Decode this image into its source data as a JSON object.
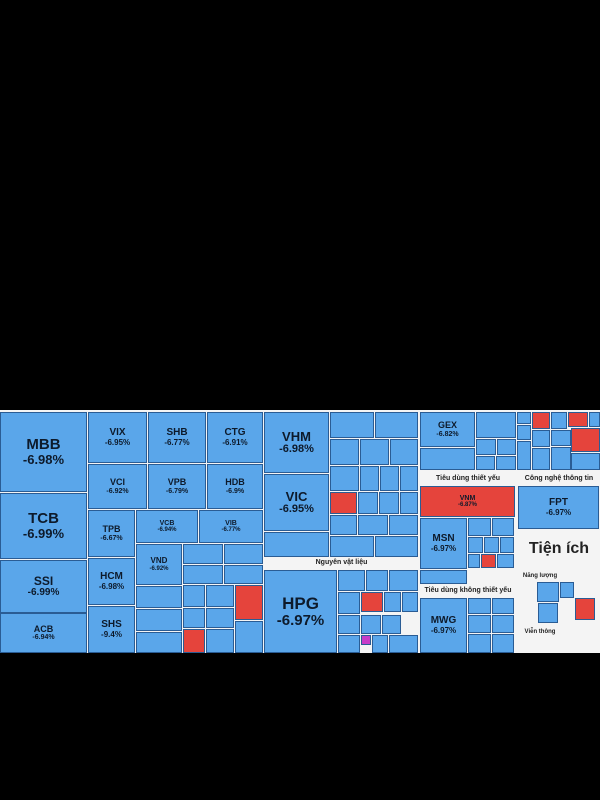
{
  "tiles": [
    {
      "ticker": "MBB",
      "change": "-6.98%"
    },
    {
      "ticker": "TCB",
      "change": "-6.99%"
    },
    {
      "ticker": "SSI",
      "change": "-6.99%"
    },
    {
      "ticker": "ACB",
      "change": "-6.94%"
    },
    {
      "ticker": "VIX",
      "change": "-6.95%"
    },
    {
      "ticker": "SHB",
      "change": "-6.77%"
    },
    {
      "ticker": "CTG",
      "change": "-6.91%"
    },
    {
      "ticker": "VCI",
      "change": "-6.92%"
    },
    {
      "ticker": "VPB",
      "change": "-6.79%"
    },
    {
      "ticker": "HDB",
      "change": "-6.9%"
    },
    {
      "ticker": "TPB",
      "change": "-6.67%"
    },
    {
      "ticker": "VCB",
      "change": "-6.94%"
    },
    {
      "ticker": "VIB",
      "change": "-6.77%"
    },
    {
      "ticker": "HCM",
      "change": "-6.98%"
    },
    {
      "ticker": "VND",
      "change": "-6.92%"
    },
    {
      "ticker": "SHS",
      "change": "-9.4%"
    },
    {
      "ticker": "VHM",
      "change": "-6.98%"
    },
    {
      "ticker": "VIC",
      "change": "-6.95%"
    },
    {
      "ticker": "HPG",
      "change": "-6.97%"
    },
    {
      "ticker": "GEX",
      "change": "-6.82%"
    },
    {
      "ticker": "VNM",
      "change": "-6.87%"
    },
    {
      "ticker": "MSN",
      "change": "-6.97%"
    },
    {
      "ticker": "MWG",
      "change": "-6.97%"
    },
    {
      "ticker": "FPT",
      "change": "-6.97%"
    }
  ],
  "sections": [
    "Nguyên vật liệu",
    "Tiêu dùng thiết yếu",
    "Tiêu dùng không thiết yếu",
    "Công nghệ thông tin",
    "Tiện ích",
    "Năng lượng",
    "Viễn thông"
  ]
}
